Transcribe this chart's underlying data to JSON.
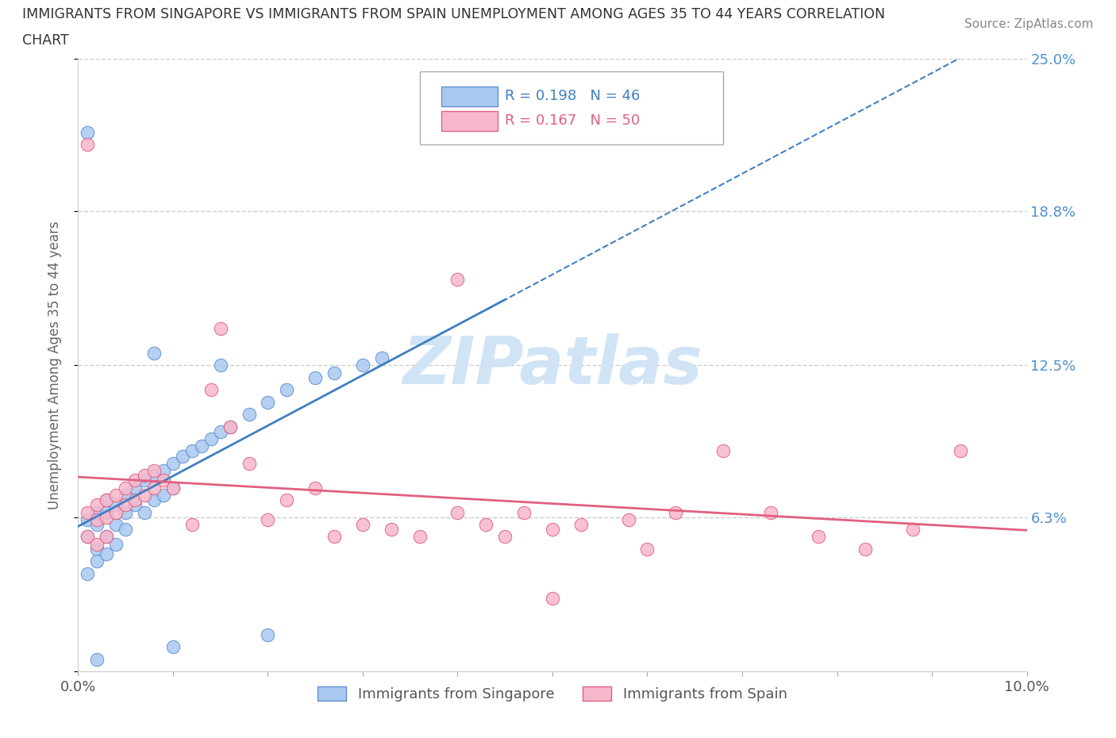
{
  "title_line1": "IMMIGRANTS FROM SINGAPORE VS IMMIGRANTS FROM SPAIN UNEMPLOYMENT AMONG AGES 35 TO 44 YEARS CORRELATION",
  "title_line2": "CHART",
  "source_text": "Source: ZipAtlas.com",
  "ylabel": "Unemployment Among Ages 35 to 44 years",
  "xlim": [
    0.0,
    0.1
  ],
  "ylim": [
    0.0,
    0.25
  ],
  "ytick_positions": [
    0.0,
    0.063,
    0.125,
    0.188,
    0.25
  ],
  "ytick_labels": [
    "",
    "6.3%",
    "12.5%",
    "18.8%",
    "25.0%"
  ],
  "xtick_positions": [
    0.0,
    0.01,
    0.02,
    0.03,
    0.04,
    0.05,
    0.06,
    0.07,
    0.08,
    0.09,
    0.1
  ],
  "xtick_labels": [
    "0.0%",
    "",
    "",
    "",
    "",
    "",
    "",
    "",
    "",
    "",
    "10.0%"
  ],
  "singapore_color": "#a8c8f0",
  "spain_color": "#f8b8cc",
  "singapore_edge_color": "#6090d0",
  "spain_edge_color": "#e06080",
  "singapore_line_color": "#4080c0",
  "spain_line_color": "#e06080",
  "R_singapore": 0.198,
  "N_singapore": 46,
  "R_spain": 0.167,
  "N_spain": 50,
  "watermark_color": "#d0e4f5",
  "background_color": "#ffffff",
  "grid_color": "#cccccc",
  "right_label_color": "#5090d0",
  "title_color": "#333333",
  "source_color": "#888888",
  "ylabel_color": "#666666"
}
